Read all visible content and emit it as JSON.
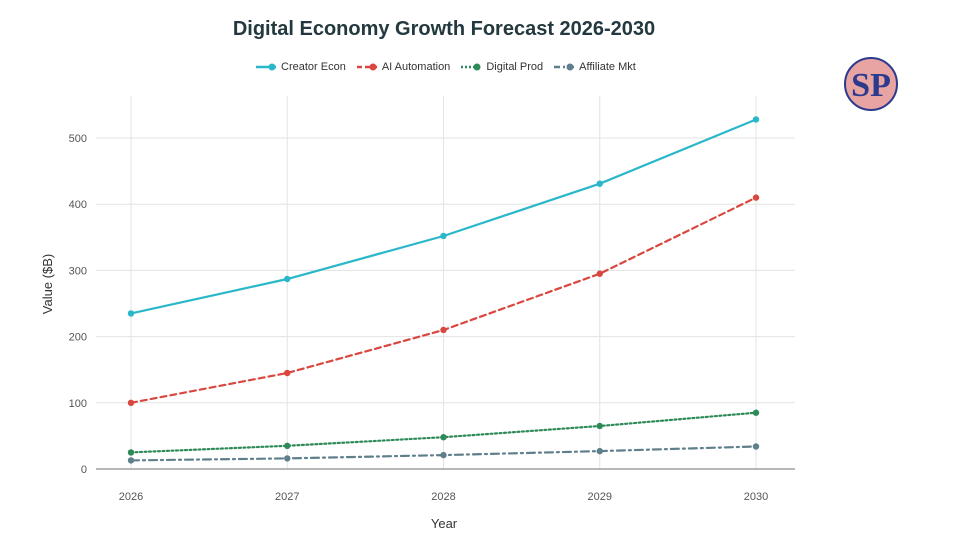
{
  "chart_data": {
    "type": "line",
    "title": "Digital Economy Growth Forecast 2026-2030",
    "xlabel": "Year",
    "ylabel": "Value ($B)",
    "x": [
      "2026",
      "2027",
      "2028",
      "2029",
      "2030"
    ],
    "y_ticks": [
      "0",
      "100",
      "200",
      "300",
      "400",
      "500"
    ],
    "ylim": [
      0,
      560
    ],
    "grid": true,
    "legend_position": "top-center",
    "series": [
      {
        "name": "Creator Econ",
        "values": [
          235,
          287,
          352,
          431,
          528
        ],
        "color": "#2ab7c9",
        "line_style": "solid"
      },
      {
        "name": "AI Automation",
        "values": [
          100,
          145,
          210,
          295,
          410
        ],
        "color": "#d9473f",
        "line_style": "dashed"
      },
      {
        "name": "Digital Prod",
        "values": [
          25,
          35,
          48,
          65,
          85
        ],
        "color": "#2e8b57",
        "line_style": "dotted"
      },
      {
        "name": "Affiliate Mkt",
        "values": [
          13,
          16,
          21,
          27,
          34
        ],
        "color": "#5f7f8c",
        "line_style": "dashdot"
      }
    ]
  },
  "logo": {
    "letters": "SP",
    "name": "sp-monogram-logo"
  }
}
